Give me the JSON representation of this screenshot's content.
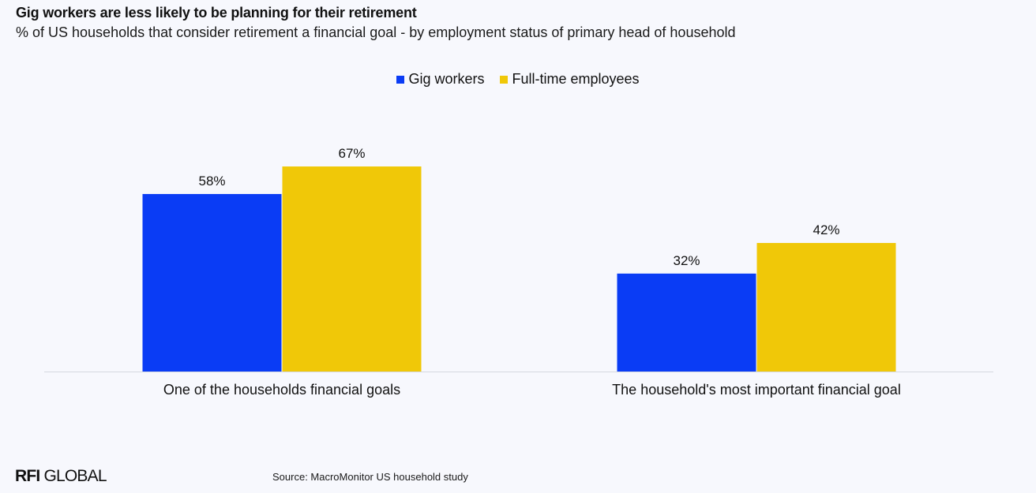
{
  "header": {
    "title": "Gig workers are less likely to be planning for their retirement",
    "subtitle": "% of US households that consider retirement a financial goal - by employment status of primary head of household"
  },
  "footer": {
    "source": "Source: MacroMonitor US household study",
    "logo_bold": "RFI",
    "logo_rest": " GLOBAL"
  },
  "chart_data": {
    "type": "bar",
    "categories": [
      "One of the households financial goals",
      "The household's most important financial goal"
    ],
    "series": [
      {
        "name": "Gig workers",
        "color": "#0a3cf5",
        "values": [
          58,
          32
        ],
        "labels": [
          "58%",
          "32%"
        ]
      },
      {
        "name": "Full-time employees",
        "color": "#f0c808",
        "values": [
          67,
          42
        ],
        "labels": [
          "67%",
          "42%"
        ]
      }
    ],
    "ylim": [
      0,
      100
    ],
    "grid": false,
    "legend": "top-center"
  }
}
